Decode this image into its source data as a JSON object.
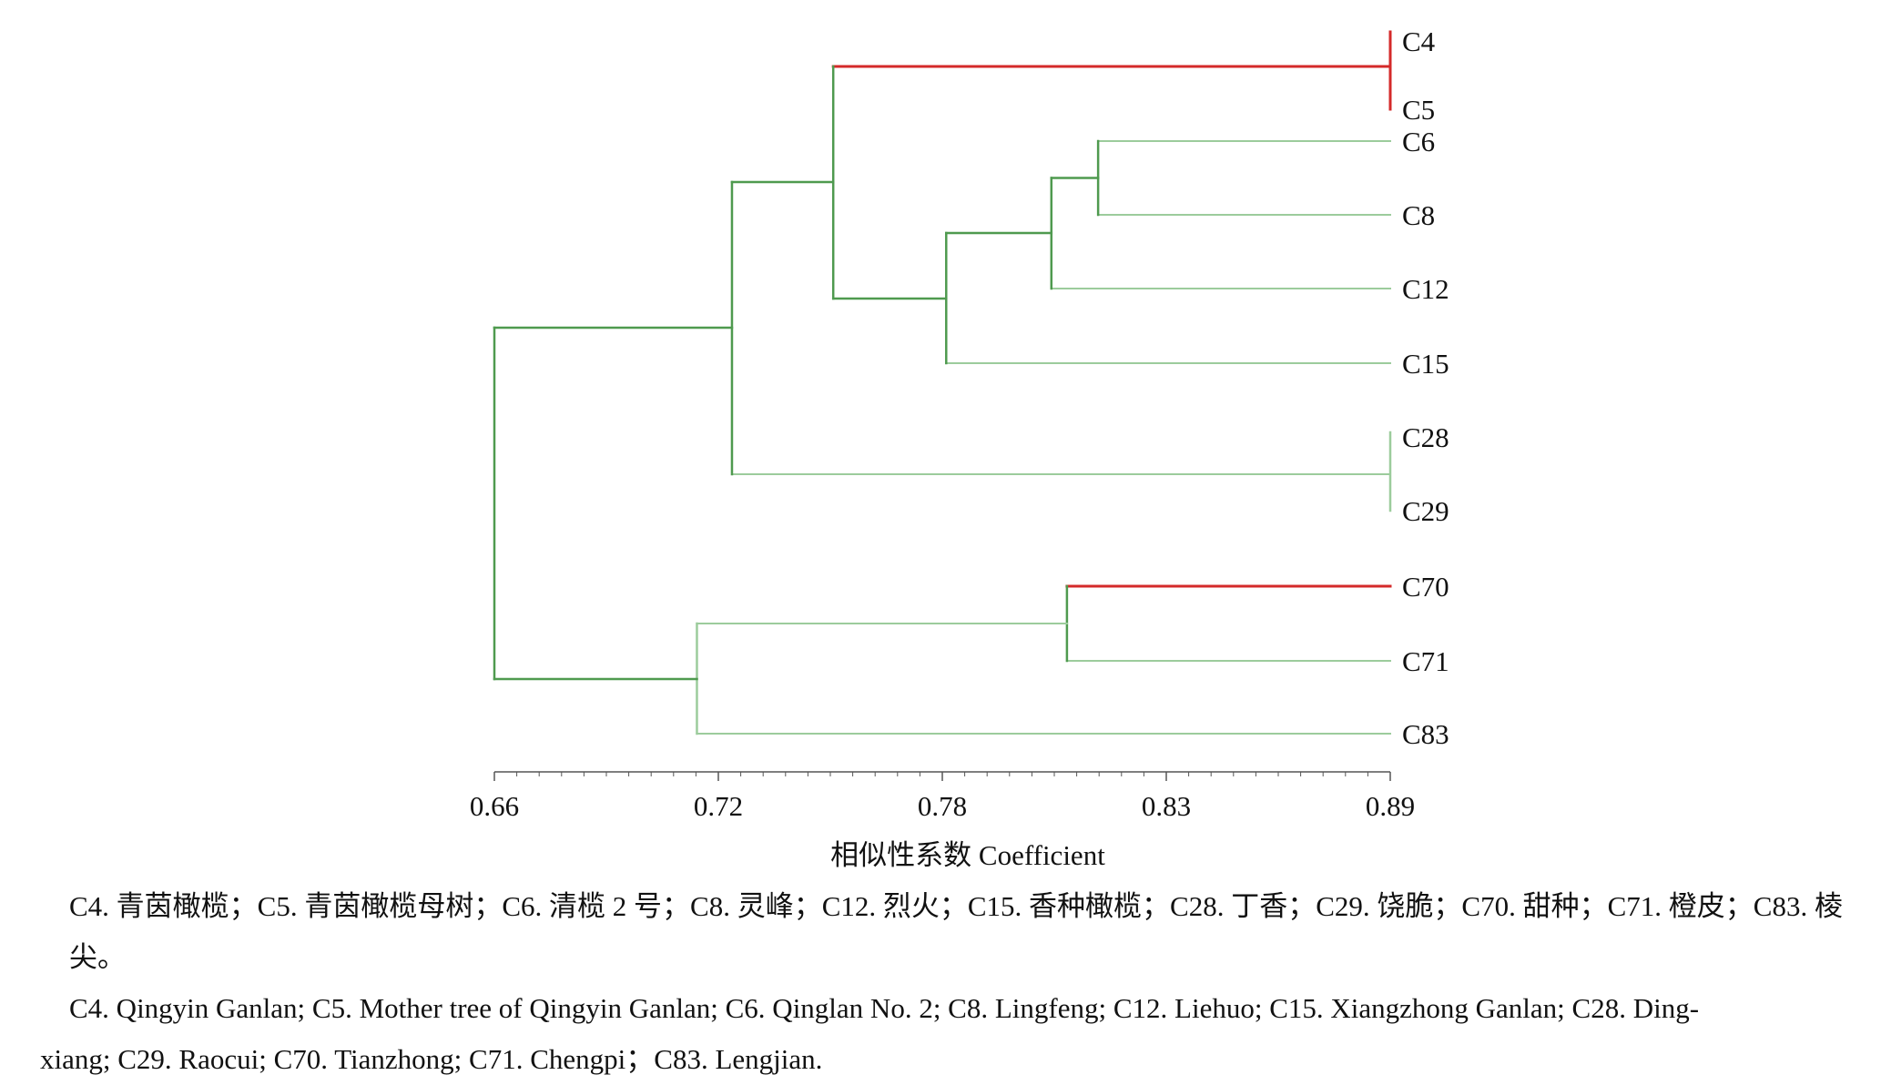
{
  "chart_data": {
    "type": "dendrogram",
    "xlabel": "相似性系数 Coefficient",
    "xlim": [
      0.66,
      0.89
    ],
    "x_ticks": [
      "0.66",
      "0.72",
      "0.78",
      "0.83",
      "0.89"
    ],
    "tick_values": [
      0.66,
      0.72,
      0.78,
      0.83,
      0.89
    ],
    "leaves": [
      "C4",
      "C5",
      "C6",
      "C8",
      "C12",
      "C15",
      "C28",
      "C29",
      "C70",
      "C71",
      "C83"
    ],
    "merges": [
      {
        "children": [
          "C4",
          "C5"
        ],
        "similarity": 0.89
      },
      {
        "children": [
          "C28",
          "C29"
        ],
        "similarity": 0.89
      },
      {
        "children": [
          "C6",
          "C8"
        ],
        "similarity": 0.815
      },
      {
        "children": [
          "C6-C8",
          "C12"
        ],
        "similarity": 0.803
      },
      {
        "children": [
          "C6-C8-C12",
          "C15"
        ],
        "similarity": 0.776
      },
      {
        "children": [
          "C4-C5",
          "C6-C15"
        ],
        "similarity": 0.747
      },
      {
        "children": [
          "C4-C15",
          "C28-C29"
        ],
        "similarity": 0.721
      },
      {
        "children": [
          "C70",
          "C71"
        ],
        "similarity": 0.807
      },
      {
        "children": [
          "C70-C71",
          "C83"
        ],
        "similarity": 0.712
      },
      {
        "children": [
          "C4-C29",
          "C70-C83"
        ],
        "similarity": 0.66
      }
    ],
    "colors": {
      "highlight": "#d42a2a",
      "dark_green": "#4f9a4f",
      "light_green": "#9ccc9c",
      "axis": "#555555"
    }
  },
  "caption": {
    "line_zh": "C4. 青茵橄榄；C5. 青茵橄榄母树；C6. 清榄 2 号；C8. 灵峰；C12. 烈火；C15. 香种橄榄；C28. 丁香；C29. 饶脆；C70. 甜种；C71. 橙皮；C83. 棱尖。",
    "line_en_1": "C4. Qingyin Ganlan; C5. Mother tree of Qingyin Ganlan; C6. Qinglan No. 2; C8. Lingfeng; C12. Liehuo; C15. Xiangzhong Ganlan; C28. Ding-",
    "line_en_2": "xiang; C29. Raocui; C70. Tianzhong; C71. Chengpi；C83. Lengjian."
  }
}
